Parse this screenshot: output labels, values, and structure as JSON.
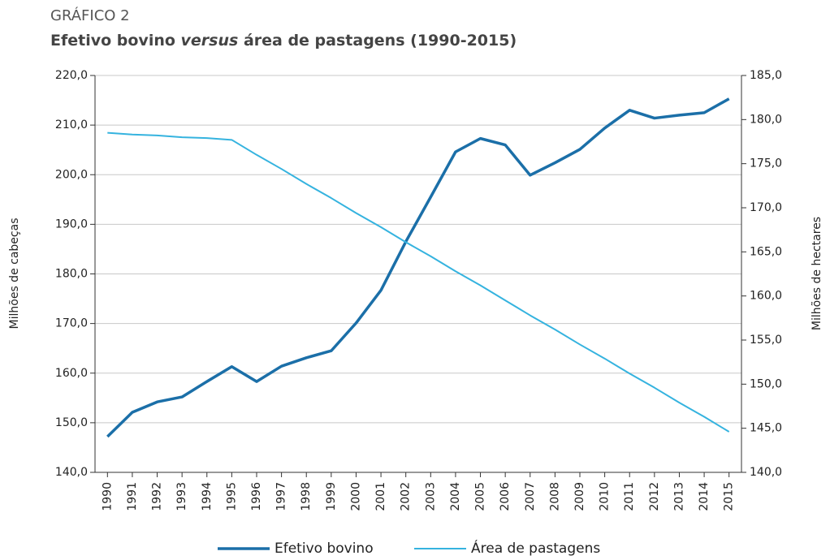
{
  "chart_data": {
    "type": "line",
    "kicker": "GRÁFICO 2",
    "title_parts": [
      "Efetivo bovino ",
      "versus",
      " área de pastagens (1990-2015)"
    ],
    "ylabel": "Milhões de cabeças",
    "y2label": "Milhões de hectares",
    "categories": [
      "1990",
      "1991",
      "1992",
      "1993",
      "1994",
      "1995",
      "1996",
      "1997",
      "1998",
      "1999",
      "2000",
      "2001",
      "2002",
      "2003",
      "2004",
      "2005",
      "2006",
      "2007",
      "2008",
      "2009",
      "2010",
      "2011",
      "2012",
      "2013",
      "2014",
      "2015"
    ],
    "series": [
      {
        "name": "Efetivo bovino",
        "color": "#1b6fa8",
        "axis": "y",
        "values": [
          147.2,
          152.1,
          154.2,
          155.2,
          158.3,
          161.3,
          158.3,
          161.4,
          163.1,
          164.5,
          170.1,
          176.7,
          186.5,
          195.5,
          204.6,
          207.3,
          206.0,
          199.9,
          202.4,
          205.1,
          209.4,
          213.0,
          211.4,
          212.0,
          212.5,
          215.3
        ]
      },
      {
        "name": "Área de pastagens",
        "color": "#35b3df",
        "axis": "y2",
        "values": [
          178.5,
          178.3,
          178.2,
          178.0,
          177.9,
          177.7,
          176.0,
          174.4,
          172.7,
          171.1,
          169.4,
          167.8,
          166.1,
          164.5,
          162.8,
          161.2,
          159.5,
          157.8,
          156.2,
          154.5,
          152.9,
          151.2,
          149.6,
          147.9,
          146.3,
          144.6
        ]
      }
    ],
    "ylim": [
      140,
      220
    ],
    "yticks": [
      {
        "value": 140,
        "label": "140,0"
      },
      {
        "value": 150,
        "label": "150,0"
      },
      {
        "value": 160,
        "label": "160,0"
      },
      {
        "value": 170,
        "label": "170,0"
      },
      {
        "value": 180,
        "label": "180,0"
      },
      {
        "value": 190,
        "label": "190,0"
      },
      {
        "value": 200,
        "label": "200,0"
      },
      {
        "value": 210,
        "label": "210,0"
      },
      {
        "value": 220,
        "label": "220,0"
      }
    ],
    "y2lim": [
      140,
      185
    ],
    "y2ticks": [
      {
        "value": 140,
        "label": "140,0"
      },
      {
        "value": 145,
        "label": "145,0"
      },
      {
        "value": 150,
        "label": "150,0"
      },
      {
        "value": 155,
        "label": "155,0"
      },
      {
        "value": 160,
        "label": "160,0"
      },
      {
        "value": 165,
        "label": "165,0"
      },
      {
        "value": 170,
        "label": "170,0"
      },
      {
        "value": 175,
        "label": "175,0"
      },
      {
        "value": 180,
        "label": "180,0"
      },
      {
        "value": 185,
        "label": "185,0"
      }
    ],
    "grid": true,
    "legend": "bottom"
  }
}
